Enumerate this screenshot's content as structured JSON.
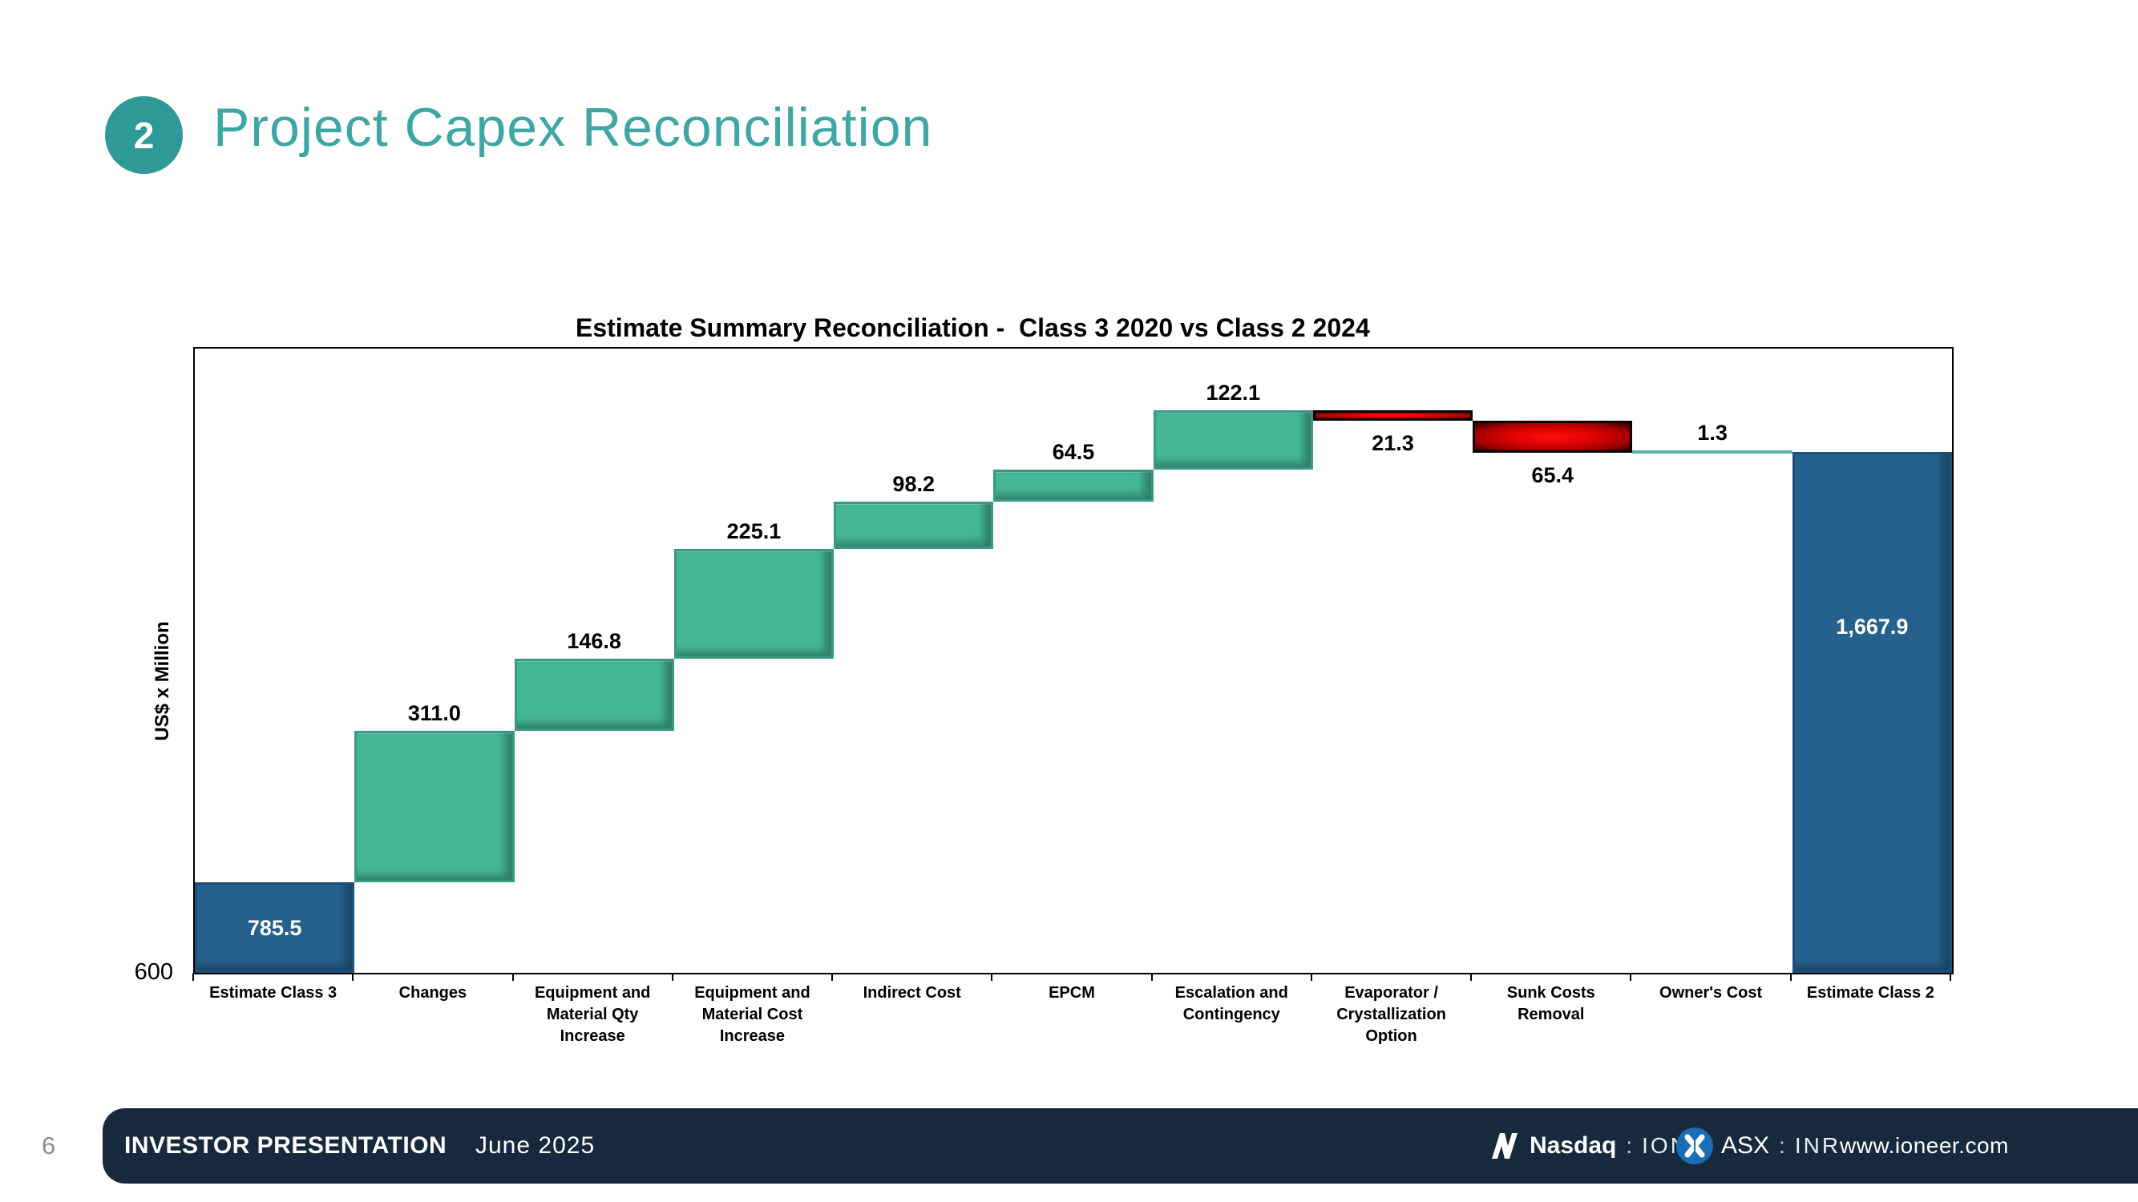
{
  "slide": {
    "section_number": "2",
    "title": "Project Capex Reconciliation",
    "page_number": "6",
    "accent_color": "#3ea7a4"
  },
  "chart_data": {
    "type": "bar",
    "subtype": "waterfall",
    "title": "Estimate Summary Reconciliation -  Class 3 2020 vs Class 2 2024",
    "xlabel": "",
    "ylabel": "US$ x Million",
    "ylim": [
      600,
      1880
    ],
    "y_axis_labels": [
      "600"
    ],
    "grid": false,
    "legend": false,
    "categories": [
      "Estimate Class 3",
      "Changes",
      "Equipment and Material Qty Increase",
      "Equipment and Material Cost Increase",
      "Indirect Cost",
      "EPCM",
      "Escalation and Contingency",
      "Evaporator / Crystallization Option",
      "Sunk Costs Removal",
      "Owner's Cost",
      "Estimate Class 2"
    ],
    "bars": [
      {
        "category": "Estimate Class 3",
        "value": 785.5,
        "display": "785.5",
        "kind": "total",
        "start": 600,
        "end": 785.5,
        "label_placement": "inside-center"
      },
      {
        "category": "Changes",
        "value": 311.0,
        "display": "311.0",
        "kind": "increase",
        "start": 785.5,
        "end": 1096.5,
        "label_placement": "above"
      },
      {
        "category": "Equipment and Material Qty Increase",
        "value": 146.8,
        "display": "146.8",
        "kind": "increase",
        "start": 1096.5,
        "end": 1243.3,
        "label_placement": "above"
      },
      {
        "category": "Equipment and Material Cost Increase",
        "value": 225.1,
        "display": "225.1",
        "kind": "increase",
        "start": 1243.3,
        "end": 1468.4,
        "label_placement": "above"
      },
      {
        "category": "Indirect Cost",
        "value": 98.2,
        "display": "98.2",
        "kind": "increase",
        "start": 1468.4,
        "end": 1566.6,
        "label_placement": "above"
      },
      {
        "category": "EPCM",
        "value": 64.5,
        "display": "64.5",
        "kind": "increase",
        "start": 1566.6,
        "end": 1631.1,
        "label_placement": "above"
      },
      {
        "category": "Escalation and Contingency",
        "value": 122.1,
        "display": "122.1",
        "kind": "increase",
        "start": 1631.1,
        "end": 1753.2,
        "label_placement": "above"
      },
      {
        "category": "Evaporator / Crystallization Option",
        "value": 21.3,
        "display": "21.3",
        "kind": "decrease",
        "start": 1753.2,
        "end": 1731.9,
        "label_placement": "below"
      },
      {
        "category": "Sunk Costs Removal",
        "value": 65.4,
        "display": "65.4",
        "kind": "decrease",
        "start": 1731.9,
        "end": 1666.5,
        "label_placement": "below"
      },
      {
        "category": "Owner's Cost",
        "value": 1.3,
        "display": "1.3",
        "kind": "increase",
        "start": 1666.5,
        "end": 1667.8,
        "label_placement": "above"
      },
      {
        "category": "Estimate Class 2",
        "value": 1667.9,
        "display": "1,667.9",
        "kind": "total",
        "start": 600,
        "end": 1667.9,
        "label_placement": "inside-upper"
      }
    ],
    "colors": {
      "total_bar": "#26618e",
      "increase_bar": "#45b795",
      "decrease_bar_center": "#de0202",
      "thin_connector": "#58b4aa"
    }
  },
  "footer": {
    "label": "INVESTOR PRESENTATION",
    "date": "June 2025",
    "nasdaq": {
      "name": "Nasdaq",
      "separator": ":",
      "ticker": "IONR"
    },
    "asx": {
      "name": "ASX",
      "separator": ":",
      "ticker": "INR"
    },
    "website": "www.ioneer.com",
    "bar_color": "#16293d",
    "asx_icon_color": "#1a6cb4"
  }
}
